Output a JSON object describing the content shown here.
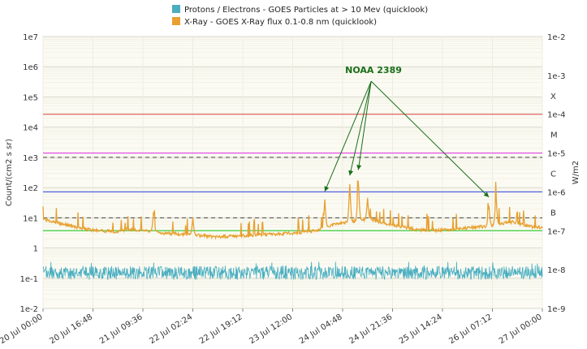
{
  "chart_data": {
    "type": "line",
    "x_start": "20 Jul 00:00",
    "x_end": "27 Jul 00:00",
    "x_tick_labels": [
      "20 Jul 00:00",
      "20 Jul 16:48",
      "21 Jul 09:36",
      "22 Jul 02:24",
      "22 Jul 19:12",
      "23 Jul 12:00",
      "24 Jul 04:48",
      "24 Jul 21:36",
      "25 Jul 14:24",
      "26 Jul 07:12",
      "27 Jul 00:00"
    ],
    "y_left": {
      "label": "Count/(cm2 s sr)",
      "scale": "log",
      "range": [
        0.01,
        10000000
      ],
      "tick_labels": [
        "1e7",
        "1e6",
        "1e5",
        "1e4",
        "1e3",
        "1e2",
        "1e1",
        "1",
        "1e-1",
        "1e-2"
      ]
    },
    "y_right": {
      "label": "W/m2",
      "scale": "log",
      "range": [
        1e-09,
        0.01
      ],
      "tick_labels": [
        "1e-2",
        "1e-3",
        "1e-4",
        "1e-5",
        "1e-6",
        "1e-7",
        "1e-8",
        "1e-9"
      ],
      "class_labels": [
        "X",
        "M",
        "C",
        "B"
      ]
    },
    "legend": {
      "position": "top-center",
      "entries": [
        {
          "label": "Protons / Electrons - GOES Particles at > 10 Mev (quicklook)",
          "color": "#4aaec0"
        },
        {
          "label": "X-Ray - GOES X-Ray flux 0.1-0.8 nm (quicklook)",
          "color": "#e8a030"
        }
      ]
    },
    "reference_lines": [
      {
        "value": 0.0001,
        "color": "#e06060"
      },
      {
        "value": 1e-05,
        "color": "#e040e0"
      },
      {
        "value": 1e-06,
        "color": "#4050e0"
      },
      {
        "value": 1e-07,
        "color": "#40d040"
      }
    ],
    "dashed_lines_left": [
      1000,
      10
    ],
    "series": [
      {
        "name": "X-Ray - GOES X-Ray flux 0.1-0.8 nm (quicklook)",
        "color": "#e8a030",
        "axis": "right",
        "x_days": [
          0,
          0.2,
          0.4,
          0.6,
          0.8,
          1.0,
          1.2,
          1.4,
          1.6,
          1.8,
          2.0,
          2.2,
          2.4,
          2.6,
          2.8,
          3.0,
          3.2,
          3.4,
          3.6,
          3.8,
          4.0,
          4.2,
          4.4,
          4.6,
          4.8,
          5.0,
          5.2,
          5.4,
          5.6,
          5.8,
          6.0,
          6.2,
          6.4,
          6.6,
          6.8,
          7.0
        ],
        "values": [
          2e-07,
          1.6e-07,
          1.3e-07,
          1.1e-07,
          1e-07,
          9.5e-08,
          1.1e-07,
          1e-07,
          9e-08,
          8.5e-08,
          8e-08,
          7.5e-08,
          7e-08,
          7.2e-08,
          7.5e-08,
          7.8e-08,
          8e-08,
          8.5e-08,
          9e-08,
          1e-07,
          1.3e-07,
          1.6e-07,
          1.8e-07,
          2e-07,
          1.5e-07,
          1.3e-07,
          1.1e-07,
          1e-07,
          1.05e-07,
          1.1e-07,
          1.2e-07,
          1.3e-07,
          1.5e-07,
          1.7e-07,
          1.3e-07,
          1.2e-07
        ],
        "spikes": [
          {
            "x_days": 1.55,
            "value": 3.5e-07
          },
          {
            "x_days": 2.1,
            "value": 2.2e-07
          },
          {
            "x_days": 3.95,
            "value": 7e-07
          },
          {
            "x_days": 4.3,
            "value": 1.8e-06
          },
          {
            "x_days": 4.42,
            "value": 2.5e-06
          },
          {
            "x_days": 4.55,
            "value": 7e-07
          },
          {
            "x_days": 6.25,
            "value": 5e-07
          },
          {
            "x_days": 6.35,
            "value": 1e-06
          }
        ]
      },
      {
        "name": "Protons / Electrons - GOES Particles at > 10 Mev (quicklook)",
        "color": "#4aaec0",
        "axis": "left",
        "base_value": 0.15,
        "range": [
          0.08,
          0.35
        ]
      }
    ],
    "annotations": [
      {
        "text": "NOAA 2389",
        "x_days": 4.6,
        "value_left": 330000,
        "arrow_targets_x_days": [
          3.95,
          4.3,
          4.42,
          6.25
        ]
      }
    ]
  }
}
